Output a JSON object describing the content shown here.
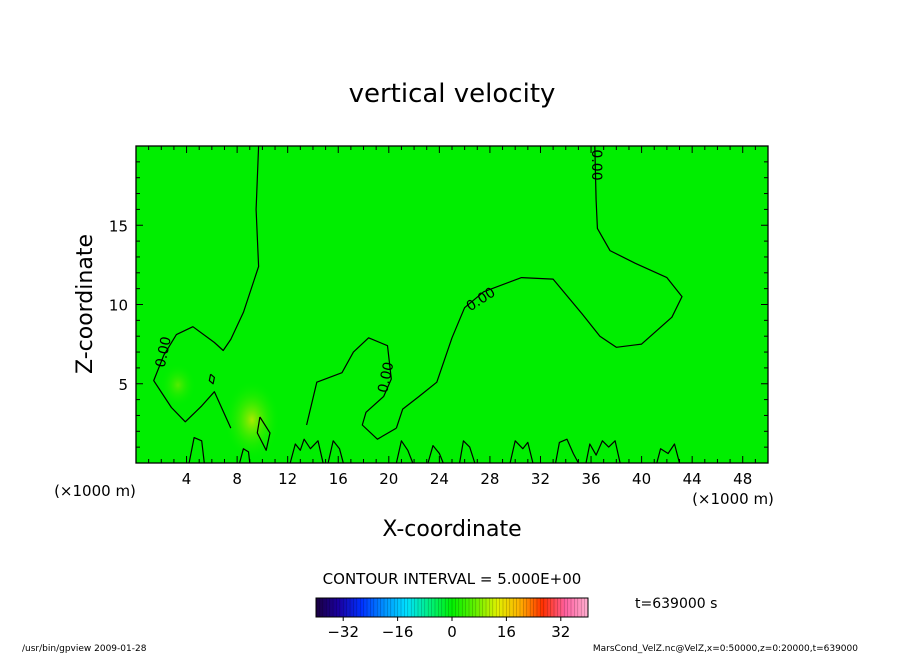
{
  "chart_data": {
    "type": "heatmap",
    "title": "vertical velocity",
    "xlabel": "X-coordinate",
    "ylabel": "Z-coordinate",
    "x_unit": "(×1000 m)",
    "y_unit": "(×1000 m)",
    "xlim": [
      0,
      50
    ],
    "ylim": [
      0,
      20
    ],
    "x_ticks": [
      4,
      8,
      12,
      16,
      20,
      24,
      28,
      32,
      36,
      40,
      44,
      48
    ],
    "y_ticks": [
      5,
      10,
      15
    ],
    "field_color": "#00ee00",
    "contour_interval_label": "CONTOUR INTERVAL = 5.000E+00",
    "contour_label": "0.00",
    "contours": [
      {
        "level": 0.0,
        "points": [
          [
            9.7,
            20
          ],
          [
            9.5,
            16
          ],
          [
            9.7,
            12.4
          ],
          [
            8.5,
            9.5
          ],
          [
            7.5,
            7.8
          ],
          [
            6.9,
            7.1
          ],
          [
            6.2,
            7.6
          ],
          [
            4.5,
            8.6
          ],
          [
            3.2,
            8.1
          ],
          [
            2.2,
            6.8
          ],
          [
            1.4,
            5.2
          ],
          [
            2.8,
            3.5
          ],
          [
            3.9,
            2.6
          ],
          [
            5.2,
            3.6
          ],
          [
            6.2,
            4.5
          ],
          [
            7.5,
            2.2
          ]
        ]
      },
      {
        "level": 0.0,
        "points": [
          [
            13.5,
            2.4
          ],
          [
            14.3,
            5.1
          ],
          [
            16.3,
            5.7
          ],
          [
            17.2,
            7.0
          ],
          [
            18.4,
            7.9
          ],
          [
            19.9,
            7.4
          ],
          [
            20.2,
            5.3
          ],
          [
            19.6,
            4.2
          ],
          [
            18.2,
            3.2
          ],
          [
            17.9,
            2.4
          ],
          [
            19.1,
            1.5
          ],
          [
            20.6,
            2.2
          ]
        ]
      },
      {
        "level": 0.0,
        "points": [
          [
            20.6,
            2.2
          ],
          [
            21.1,
            3.4
          ],
          [
            22.4,
            4.2
          ],
          [
            23.8,
            5.1
          ],
          [
            25.0,
            7.9
          ],
          [
            26.0,
            9.8
          ],
          [
            27.5,
            10.8
          ],
          [
            30.5,
            11.7
          ],
          [
            33.0,
            11.6
          ],
          [
            35.3,
            9.4
          ],
          [
            36.7,
            8.0
          ],
          [
            38.0,
            7.3
          ],
          [
            40.0,
            7.5
          ],
          [
            42.4,
            9.2
          ],
          [
            43.2,
            10.5
          ],
          [
            42.0,
            11.7
          ],
          [
            39.5,
            12.6
          ],
          [
            37.5,
            13.4
          ],
          [
            36.5,
            14.8
          ],
          [
            36.4,
            16.6
          ],
          [
            36.3,
            20
          ]
        ]
      },
      {
        "level": 0.0,
        "points": [
          [
            9.8,
            2.9
          ],
          [
            9.6,
            1.9
          ],
          [
            10.3,
            0.8
          ],
          [
            10.6,
            1.9
          ],
          [
            9.8,
            2.9
          ]
        ]
      },
      {
        "level": 0.0,
        "points": [
          [
            5.9,
            5.6
          ],
          [
            5.8,
            5.2
          ],
          [
            6.1,
            5.0
          ],
          [
            6.2,
            5.4
          ],
          [
            5.9,
            5.6
          ]
        ]
      },
      {
        "level": 0.0,
        "points": [
          [
            4.2,
            0
          ],
          [
            4.6,
            1.6
          ],
          [
            5.2,
            1.4
          ],
          [
            5.4,
            0
          ]
        ]
      },
      {
        "level": 0.0,
        "points": [
          [
            8.2,
            0
          ],
          [
            8.5,
            0.9
          ],
          [
            8.9,
            0.7
          ],
          [
            9.0,
            0
          ]
        ]
      },
      {
        "level": 0.0,
        "points": [
          [
            12.2,
            0
          ],
          [
            12.6,
            1.2
          ],
          [
            13.0,
            0.8
          ],
          [
            13.3,
            1.5
          ],
          [
            13.8,
            0.9
          ],
          [
            14.4,
            1.4
          ],
          [
            14.8,
            0
          ]
        ]
      },
      {
        "level": 0.0,
        "points": [
          [
            15.2,
            0
          ],
          [
            15.6,
            1.4
          ],
          [
            16.1,
            0.9
          ],
          [
            16.4,
            0
          ]
        ]
      },
      {
        "level": 0.0,
        "points": [
          [
            20.6,
            0
          ],
          [
            21.0,
            1.4
          ],
          [
            21.5,
            0.8
          ],
          [
            21.9,
            0
          ]
        ]
      },
      {
        "level": 0.0,
        "points": [
          [
            23.1,
            0
          ],
          [
            23.5,
            1.1
          ],
          [
            24.0,
            0.6
          ],
          [
            24.3,
            0
          ]
        ]
      },
      {
        "level": 0.0,
        "points": [
          [
            25.6,
            0
          ],
          [
            25.9,
            1.4
          ],
          [
            26.4,
            1.0
          ],
          [
            26.8,
            0
          ]
        ]
      },
      {
        "level": 0.0,
        "points": [
          [
            29.6,
            0
          ],
          [
            30.0,
            1.4
          ],
          [
            30.6,
            0.9
          ],
          [
            31.0,
            1.3
          ],
          [
            31.4,
            0
          ]
        ]
      },
      {
        "level": 0.0,
        "points": [
          [
            33.2,
            0
          ],
          [
            33.5,
            1.3
          ],
          [
            34.1,
            1.5
          ],
          [
            34.6,
            0.6
          ],
          [
            35.0,
            0
          ]
        ]
      },
      {
        "level": 0.0,
        "points": [
          [
            35.6,
            0
          ],
          [
            35.9,
            1.2
          ],
          [
            36.4,
            0.5
          ],
          [
            36.9,
            1.4
          ],
          [
            37.4,
            1.0
          ],
          [
            37.9,
            1.4
          ],
          [
            38.3,
            0
          ]
        ]
      },
      {
        "level": 0.0,
        "points": [
          [
            41.2,
            0
          ],
          [
            41.5,
            0.9
          ],
          [
            42.1,
            0.6
          ],
          [
            42.6,
            1.2
          ],
          [
            43.0,
            0
          ]
        ]
      }
    ],
    "contour_labels": [
      {
        "text": "0.00",
        "x": 2.2,
        "y": 7.0,
        "angle": -78
      },
      {
        "text": "0.00",
        "x": 19.8,
        "y": 5.4,
        "angle": -78
      },
      {
        "text": "0.00",
        "x": 27.3,
        "y": 10.3,
        "angle": -33
      },
      {
        "text": "0.00",
        "x": 36.4,
        "y": 18.8,
        "angle": 90
      }
    ],
    "colorbar": {
      "ticks": [
        -32,
        -16,
        0,
        16,
        32
      ],
      "range": [
        -40,
        40
      ],
      "colors": [
        "#1a0040",
        "#1a00a0",
        "#0030ff",
        "#0090ff",
        "#00e0ff",
        "#00f080",
        "#00f000",
        "#60f000",
        "#e0f000",
        "#ffb000",
        "#ff3000",
        "#ff60a0",
        "#ffb0d0"
      ]
    },
    "time_label": "t=639000 s"
  },
  "footer": {
    "left": "/usr/bin/gpview  2009-01-28",
    "right": "MarsCond_VelZ.nc@VelZ,x=0:50000,z=0:20000,t=639000"
  }
}
